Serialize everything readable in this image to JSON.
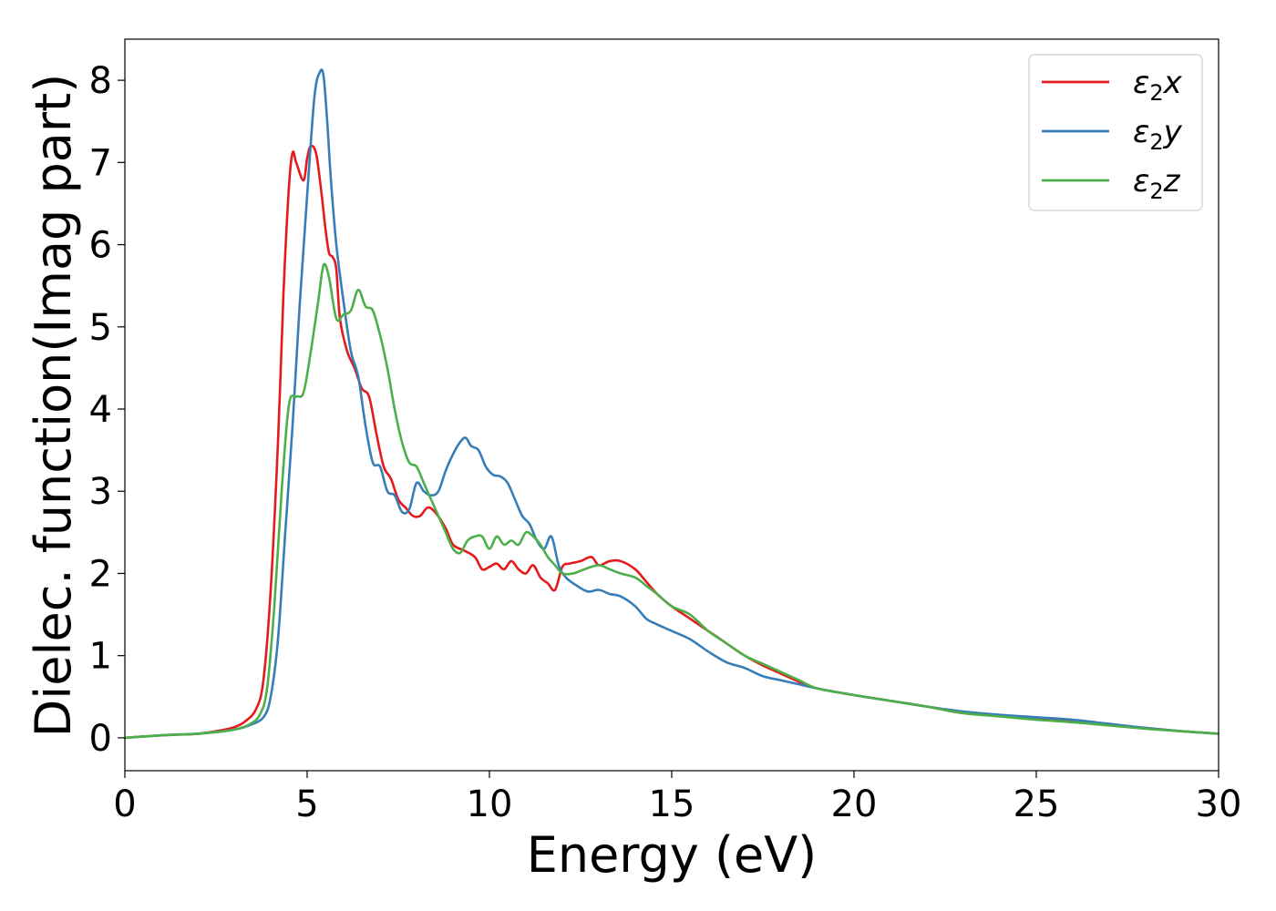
{
  "chart_data": {
    "type": "line",
    "title": "",
    "xlabel": "Energy (eV)",
    "ylabel": "Dielec. function(Imag part)",
    "xlim": [
      0,
      30
    ],
    "ylim": [
      -0.4,
      8.5
    ],
    "xticks": [
      0,
      5,
      10,
      15,
      20,
      25,
      30
    ],
    "yticks": [
      0,
      1,
      2,
      3,
      4,
      5,
      6,
      7,
      8
    ],
    "grid": false,
    "legend_position": "top-right",
    "series": [
      {
        "name": "ε2x",
        "legend": {
          "base": "ε",
          "sub": "2",
          "suffix": "x"
        },
        "color": "#e41a1c",
        "x": [
          0,
          1,
          2,
          2.5,
          3,
          3.3,
          3.6,
          3.8,
          4.0,
          4.2,
          4.35,
          4.5,
          4.6,
          4.7,
          4.9,
          5.0,
          5.1,
          5.25,
          5.4,
          5.5,
          5.6,
          5.7,
          5.8,
          5.9,
          6.1,
          6.3,
          6.5,
          6.7,
          6.9,
          7.1,
          7.3,
          7.5,
          7.7,
          7.9,
          8.1,
          8.3,
          8.5,
          8.8,
          9.0,
          9.3,
          9.6,
          9.8,
          10.0,
          10.2,
          10.4,
          10.6,
          10.8,
          11.0,
          11.2,
          11.4,
          11.6,
          11.8,
          12.0,
          12.2,
          12.5,
          12.8,
          13.0,
          13.3,
          13.6,
          14.0,
          14.3,
          14.6,
          15.0,
          15.5,
          16.0,
          16.5,
          17.0,
          17.5,
          18.0,
          18.5,
          19.0,
          20.0,
          21.0,
          22.0,
          23.0,
          24.0,
          25.0,
          26.0,
          27.0,
          28.0,
          29.0,
          30.0
        ],
        "y": [
          0.0,
          0.03,
          0.05,
          0.08,
          0.13,
          0.2,
          0.35,
          0.7,
          1.8,
          3.6,
          5.4,
          6.7,
          7.12,
          7.0,
          6.78,
          7.05,
          7.2,
          7.1,
          6.6,
          6.2,
          5.9,
          5.85,
          5.7,
          5.1,
          4.7,
          4.5,
          4.25,
          4.15,
          3.7,
          3.3,
          3.15,
          2.9,
          2.8,
          2.7,
          2.7,
          2.8,
          2.75,
          2.55,
          2.35,
          2.28,
          2.2,
          2.05,
          2.08,
          2.12,
          2.05,
          2.15,
          2.05,
          2.0,
          2.1,
          1.95,
          1.88,
          1.8,
          2.08,
          2.12,
          2.15,
          2.2,
          2.1,
          2.15,
          2.15,
          2.05,
          1.9,
          1.75,
          1.6,
          1.45,
          1.3,
          1.15,
          1.0,
          0.88,
          0.78,
          0.68,
          0.6,
          0.52,
          0.45,
          0.38,
          0.3,
          0.27,
          0.23,
          0.2,
          0.16,
          0.12,
          0.08,
          0.05
        ]
      },
      {
        "name": "ε2y",
        "legend": {
          "base": "ε",
          "sub": "2",
          "suffix": "y"
        },
        "color": "#377eb8",
        "x": [
          0,
          1,
          2,
          2.5,
          3,
          3.4,
          3.8,
          4.0,
          4.2,
          4.4,
          4.6,
          4.8,
          5.0,
          5.2,
          5.35,
          5.45,
          5.55,
          5.65,
          5.8,
          6.0,
          6.2,
          6.4,
          6.6,
          6.8,
          7.0,
          7.2,
          7.4,
          7.6,
          7.8,
          8.0,
          8.2,
          8.4,
          8.6,
          8.8,
          9.0,
          9.2,
          9.35,
          9.5,
          9.7,
          9.9,
          10.1,
          10.3,
          10.5,
          10.7,
          10.9,
          11.1,
          11.3,
          11.5,
          11.7,
          11.9,
          12.1,
          12.4,
          12.7,
          13.0,
          13.3,
          13.6,
          14.0,
          14.3,
          14.6,
          15.0,
          15.5,
          16.0,
          16.5,
          17.0,
          17.5,
          18.0,
          18.5,
          19.0,
          20.0,
          21.0,
          22.0,
          23.0,
          24.0,
          25.0,
          26.0,
          27.0,
          28.0,
          29.0,
          30.0
        ],
        "y": [
          0.0,
          0.03,
          0.05,
          0.07,
          0.1,
          0.15,
          0.25,
          0.5,
          1.2,
          2.5,
          3.8,
          5.3,
          6.6,
          7.8,
          8.1,
          8.05,
          7.5,
          6.8,
          6.0,
          5.3,
          4.7,
          4.4,
          3.8,
          3.35,
          3.3,
          3.0,
          2.95,
          2.75,
          2.78,
          3.1,
          3.0,
          2.95,
          3.0,
          3.25,
          3.45,
          3.6,
          3.65,
          3.55,
          3.5,
          3.3,
          3.2,
          3.18,
          3.1,
          2.9,
          2.7,
          2.6,
          2.4,
          2.3,
          2.45,
          2.1,
          1.95,
          1.85,
          1.78,
          1.8,
          1.75,
          1.72,
          1.6,
          1.45,
          1.38,
          1.3,
          1.2,
          1.05,
          0.92,
          0.85,
          0.75,
          0.7,
          0.65,
          0.6,
          0.52,
          0.45,
          0.38,
          0.32,
          0.28,
          0.25,
          0.22,
          0.17,
          0.12,
          0.08,
          0.05
        ]
      },
      {
        "name": "ε2z",
        "legend": {
          "base": "ε",
          "sub": "2",
          "suffix": "z"
        },
        "color": "#4daf4a",
        "x": [
          0,
          1,
          2,
          2.5,
          3,
          3.4,
          3.7,
          3.9,
          4.1,
          4.3,
          4.5,
          4.7,
          4.9,
          5.1,
          5.3,
          5.45,
          5.6,
          5.8,
          6.0,
          6.2,
          6.4,
          6.6,
          6.8,
          7.0,
          7.2,
          7.4,
          7.6,
          7.8,
          8.0,
          8.2,
          8.4,
          8.6,
          8.8,
          9.0,
          9.2,
          9.4,
          9.6,
          9.8,
          10.0,
          10.2,
          10.4,
          10.6,
          10.8,
          11.0,
          11.2,
          11.4,
          11.6,
          11.8,
          12.0,
          12.3,
          12.6,
          13.0,
          13.3,
          13.6,
          14.0,
          14.3,
          14.6,
          15.0,
          15.5,
          16.0,
          16.5,
          17.0,
          17.5,
          18.0,
          18.5,
          19.0,
          20.0,
          21.0,
          22.0,
          23.0,
          24.0,
          25.0,
          26.0,
          27.0,
          28.0,
          29.0,
          30.0
        ],
        "y": [
          0.0,
          0.03,
          0.05,
          0.07,
          0.1,
          0.16,
          0.28,
          0.6,
          1.6,
          3.0,
          4.05,
          4.15,
          4.2,
          4.7,
          5.3,
          5.75,
          5.6,
          5.1,
          5.15,
          5.2,
          5.45,
          5.25,
          5.2,
          4.9,
          4.5,
          4.0,
          3.6,
          3.35,
          3.3,
          3.1,
          2.9,
          2.7,
          2.5,
          2.3,
          2.25,
          2.4,
          2.45,
          2.45,
          2.3,
          2.45,
          2.35,
          2.4,
          2.35,
          2.5,
          2.45,
          2.35,
          2.2,
          2.1,
          2.0,
          2.0,
          2.05,
          2.1,
          2.05,
          2.0,
          1.95,
          1.85,
          1.75,
          1.6,
          1.5,
          1.3,
          1.15,
          1.0,
          0.9,
          0.8,
          0.7,
          0.6,
          0.52,
          0.45,
          0.38,
          0.3,
          0.26,
          0.22,
          0.19,
          0.15,
          0.11,
          0.08,
          0.05
        ]
      }
    ]
  }
}
